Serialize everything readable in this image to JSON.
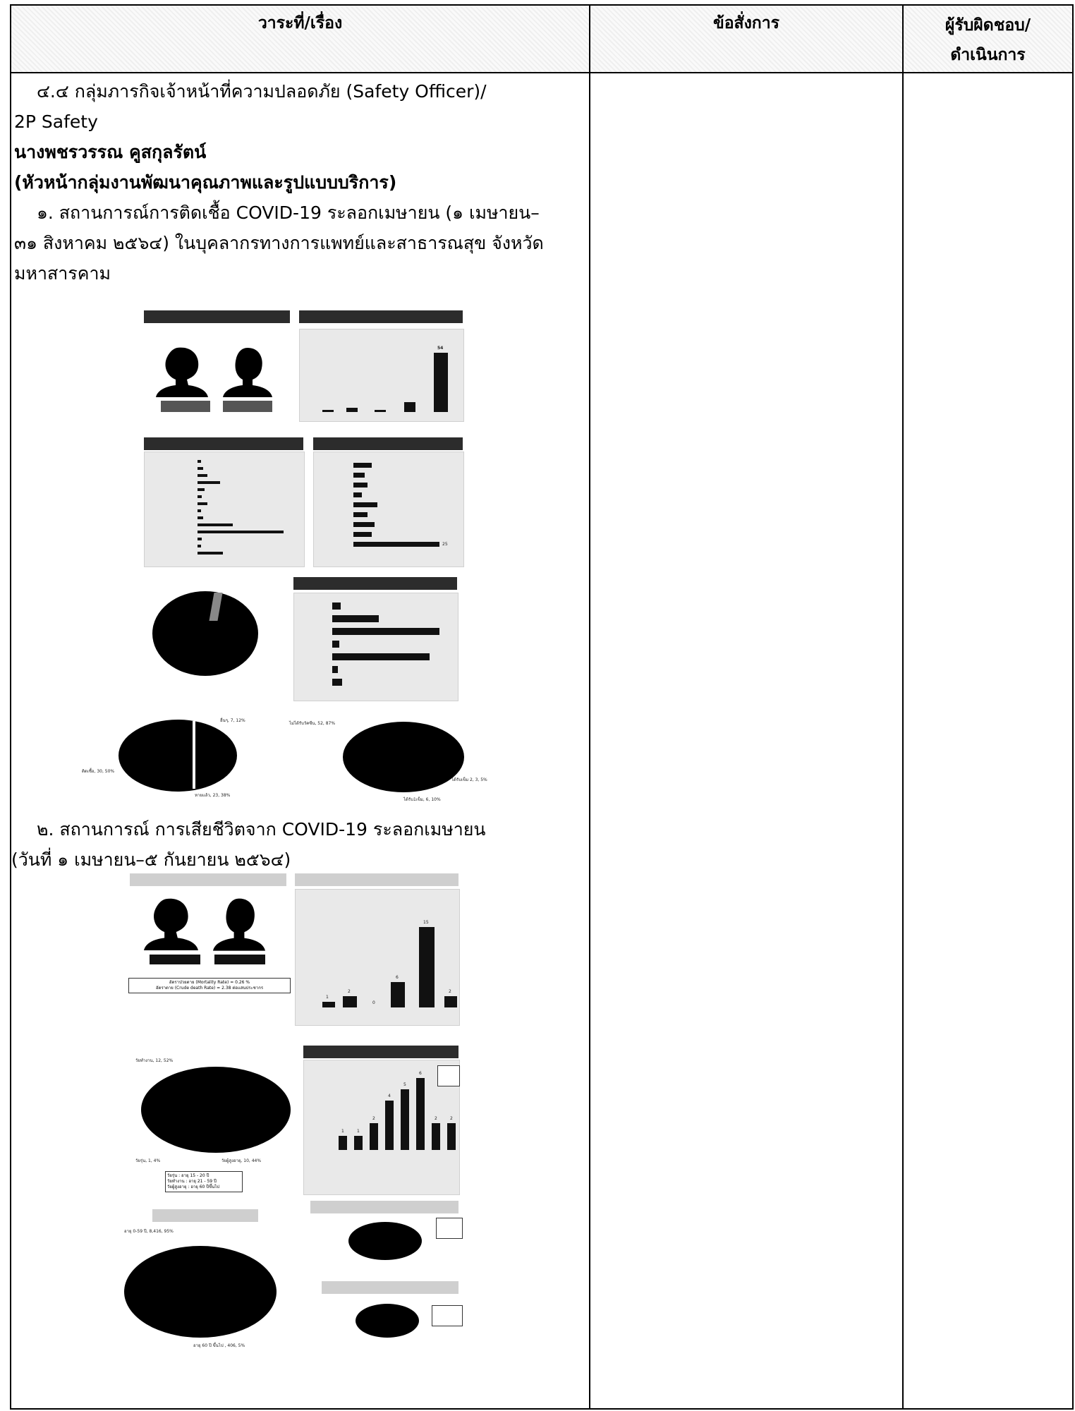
{
  "table": {
    "headers": [
      "วาระที่/เรื่อง",
      "ข้อสั่งการ",
      "ผู้รับผิดชอบ/ดำเนินการ"
    ],
    "header_col3_line1": "ผู้รับผิดชอบ/",
    "header_col3_line2": "ดำเนินการ"
  },
  "content": {
    "section_title": "๔.๔ กลุ่มภารกิจเจ้าหน้าที่ความปลอดภัย (Safety Officer)/",
    "section_title_cont": "2P Safety",
    "presenter_name": "นางพชรวรรณ คูสกุลรัตน์",
    "presenter_role": "(หัวหน้ากลุ่มงานพัฒนาคุณภาพและรูปแบบบริการ)",
    "item1_line1": "๑. สถานการณ์การติดเชื้อ COVID-19 ระลอกเมษายน (๑ เมษายน–",
    "item1_line2": "๓๑ สิงหาคม ๒๕๖๔) ในบุคลากรทางการแพทย์และสาธารณสุข จังหวัด",
    "item1_line3": "มหาสารคาม",
    "item2_line1": "๒. สถานการณ์ การเสียชีวิตจาก COVID-19 ระลอกเมษายน",
    "item2_line2": "(วันที่ ๑ เมษายน–๕ กันยายน ๒๕๖๔)"
  },
  "figure1": {
    "bar_top_value": "54",
    "pie_labels": [
      "อื่นๆ, 7, 12%",
      "ติดเชื้อ, 30, 50%",
      "หายแล้ว, 23, 38%",
      "ไม่ได้รับวัคซีน, 52, 87%",
      "ได้รับเข็ม 2, 3, 5%",
      "ได้รับ1เข็ม, 6, 10%"
    ],
    "hbar_value": "25"
  },
  "figure2": {
    "mortality_note_line1": "อัตราป่วยตาย (Mortality Rate) = 0.26 %",
    "mortality_note_line2": "อัตราตาย (Crude death Rate) = 2.38 ต่อแสนประชากร",
    "bar_values": [
      "1",
      "2",
      "0",
      "6",
      "15",
      "2"
    ],
    "age_bar_values": [
      "1",
      "1",
      "2",
      "4",
      "5",
      "6",
      "2",
      "2"
    ],
    "pie_labels": [
      "วัยทำงาน, 12, 52%",
      "วัยรุ่น, 1, 4%",
      "วัยผู้สูงอายุ, 10, 44%"
    ],
    "legend": [
      "วัยรุ่น : อายุ 15 - 20 ปี",
      "วัยทำงาน : อายุ 21 - 59 ปี",
      "วัยผู้สูงอายุ : อายุ 60 ปีขึ้นไป"
    ],
    "pie2_labels": [
      "อายุ 0-59 ปี, 8,416, 95%",
      "อายุ 60 ปี ขึ้นไป , 406, 5%"
    ]
  }
}
